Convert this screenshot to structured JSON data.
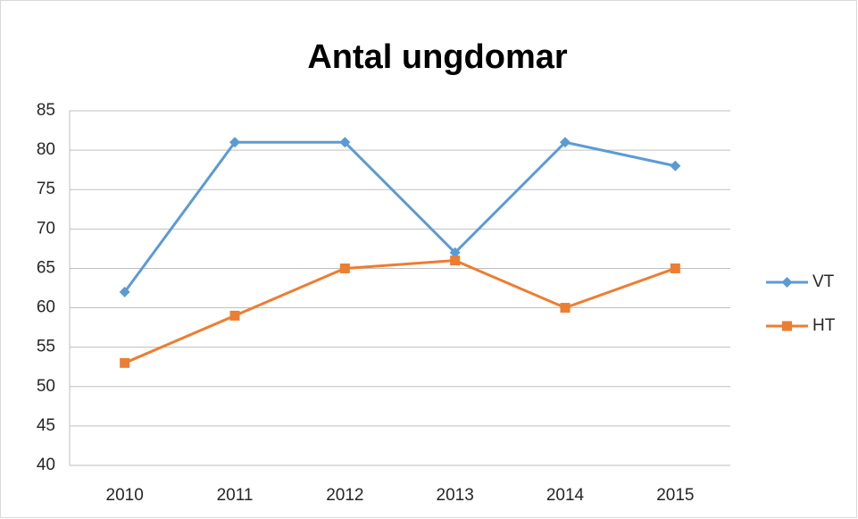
{
  "chart_data": {
    "type": "line",
    "title": "Antal ungdomar",
    "categories": [
      "2010",
      "2011",
      "2012",
      "2013",
      "2014",
      "2015"
    ],
    "series": [
      {
        "name": "VT",
        "color": "#5b9bd5",
        "marker": "diamond",
        "values": [
          62,
          81,
          81,
          67,
          81,
          78
        ]
      },
      {
        "name": "HT",
        "color": "#ed7d31",
        "marker": "square",
        "values": [
          53,
          59,
          65,
          66,
          60,
          65
        ]
      }
    ],
    "ylim": [
      40,
      85
    ],
    "yticks": [
      40,
      45,
      50,
      55,
      60,
      65,
      70,
      75,
      80,
      85
    ],
    "grid": true,
    "legend": "right"
  }
}
